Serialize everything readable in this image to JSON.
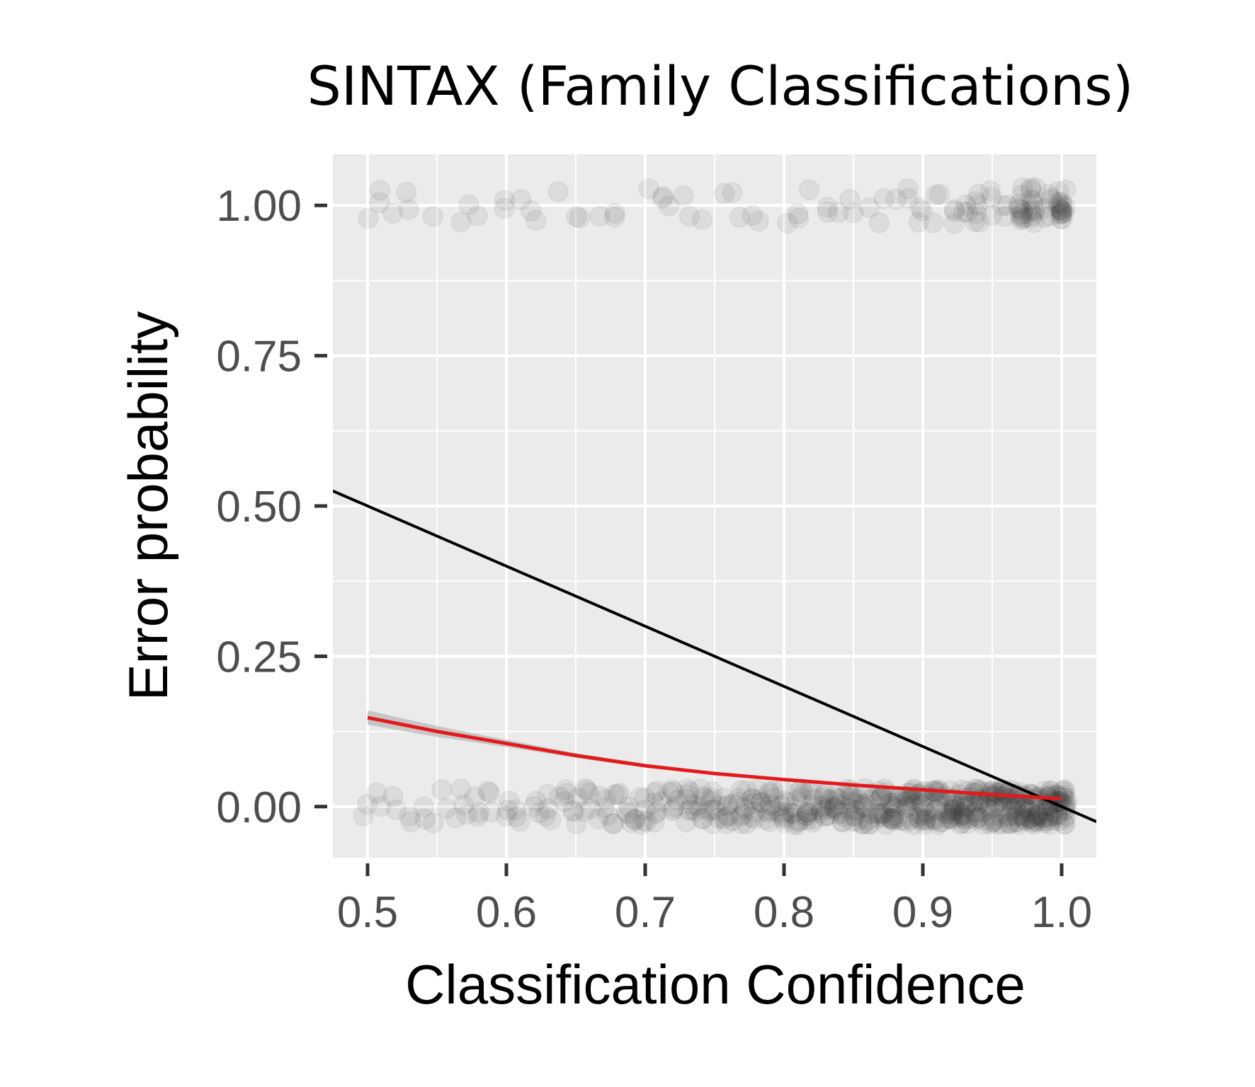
{
  "chart_data": {
    "type": "scatter",
    "title": "SINTAX (Family Classifications)",
    "xlabel": "Classification Confidence",
    "ylabel": "Error probability",
    "xlim": [
      0.475,
      1.025
    ],
    "ylim": [
      -0.085,
      1.085
    ],
    "x_ticks": [
      0.5,
      0.6,
      0.7,
      0.8,
      0.9,
      1.0
    ],
    "x_tick_labels": [
      "0.5",
      "0.6",
      "0.7",
      "0.8",
      "0.9",
      "1.0"
    ],
    "y_ticks": [
      0.0,
      0.25,
      0.5,
      0.75,
      1.0
    ],
    "y_tick_labels": [
      "0.00",
      "0.25",
      "0.50",
      "0.75",
      "1.00"
    ],
    "grid": true,
    "background_color": "#ebebeb",
    "point_color": "#333333",
    "points_upper": {
      "y": 1.0,
      "jitter": 0.03,
      "x": [
        0.5,
        0.51,
        0.52,
        0.53,
        0.55,
        0.57,
        0.58,
        0.6,
        0.61,
        0.62,
        0.64,
        0.65,
        0.67,
        0.68,
        0.7,
        0.71,
        0.72,
        0.73,
        0.74,
        0.76,
        0.77,
        0.78,
        0.8,
        0.81,
        0.82,
        0.83,
        0.84,
        0.85,
        0.86,
        0.87,
        0.88,
        0.89,
        0.9,
        0.91,
        0.92,
        0.93,
        0.94,
        0.95,
        0.96,
        0.97,
        0.98,
        0.99,
        1.0,
        1.0,
        1.0,
        0.97,
        0.98,
        0.94
      ]
    },
    "points_lower": {
      "y": 0.0,
      "jitter": 0.03,
      "x_start": 0.5,
      "x_end": 1.0,
      "x_step": 0.01
    },
    "series": [
      {
        "name": "",
        "kind": "line",
        "color": "#000000",
        "x": [
          0.475,
          1.025
        ],
        "y": [
          0.525,
          -0.025
        ]
      },
      {
        "name": "",
        "kind": "logistic-fit",
        "color": "#e31a1c",
        "band_color": "#bdbdbd",
        "x": [
          0.5,
          0.55,
          0.6,
          0.65,
          0.7,
          0.75,
          0.8,
          0.85,
          0.9,
          0.95,
          1.0
        ],
        "y": [
          0.148,
          0.125,
          0.105,
          0.085,
          0.068,
          0.055,
          0.045,
          0.036,
          0.028,
          0.02,
          0.013
        ],
        "band_halfwidth": [
          0.012,
          0.009,
          0.006,
          0.004,
          0.003,
          0.002,
          0.002,
          0.002,
          0.002,
          0.002,
          0.002
        ]
      }
    ]
  }
}
